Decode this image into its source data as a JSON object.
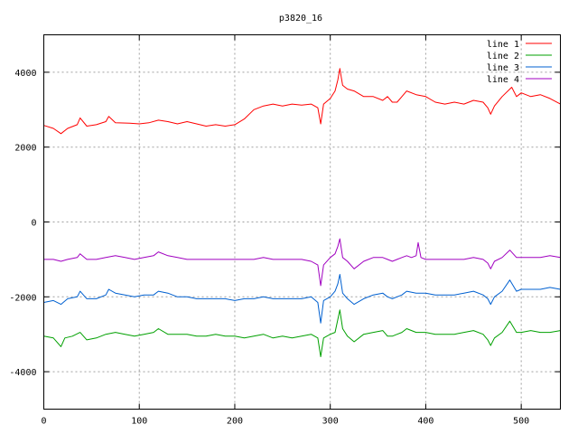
{
  "chart_data": {
    "type": "line",
    "title": "p3820_16",
    "xlabel": "",
    "ylabel": "",
    "xlim": [
      0,
      541
    ],
    "ylim": [
      -5000,
      5000
    ],
    "x_ticks": [
      0,
      100,
      200,
      300,
      400,
      500
    ],
    "y_ticks": [
      -4000,
      -2000,
      0,
      2000,
      4000
    ],
    "grid": true,
    "legend_position": "top-right",
    "series": [
      {
        "name": "line 1",
        "color": "#ff0000",
        "points": [
          [
            0,
            2580
          ],
          [
            10,
            2500
          ],
          [
            18,
            2360
          ],
          [
            25,
            2500
          ],
          [
            35,
            2600
          ],
          [
            38,
            2780
          ],
          [
            45,
            2560
          ],
          [
            55,
            2600
          ],
          [
            65,
            2680
          ],
          [
            68,
            2820
          ],
          [
            75,
            2650
          ],
          [
            90,
            2640
          ],
          [
            100,
            2620
          ],
          [
            110,
            2650
          ],
          [
            120,
            2720
          ],
          [
            130,
            2680
          ],
          [
            140,
            2620
          ],
          [
            150,
            2680
          ],
          [
            160,
            2620
          ],
          [
            170,
            2560
          ],
          [
            180,
            2600
          ],
          [
            190,
            2560
          ],
          [
            200,
            2600
          ],
          [
            210,
            2750
          ],
          [
            220,
            3000
          ],
          [
            230,
            3100
          ],
          [
            240,
            3150
          ],
          [
            250,
            3100
          ],
          [
            260,
            3150
          ],
          [
            270,
            3120
          ],
          [
            280,
            3150
          ],
          [
            287,
            3050
          ],
          [
            290,
            2620
          ],
          [
            293,
            3150
          ],
          [
            300,
            3300
          ],
          [
            305,
            3500
          ],
          [
            308,
            3800
          ],
          [
            310,
            4100
          ],
          [
            313,
            3650
          ],
          [
            318,
            3550
          ],
          [
            325,
            3500
          ],
          [
            335,
            3350
          ],
          [
            345,
            3350
          ],
          [
            355,
            3250
          ],
          [
            360,
            3350
          ],
          [
            365,
            3200
          ],
          [
            370,
            3200
          ],
          [
            375,
            3350
          ],
          [
            380,
            3500
          ],
          [
            390,
            3400
          ],
          [
            400,
            3350
          ],
          [
            410,
            3200
          ],
          [
            420,
            3150
          ],
          [
            430,
            3200
          ],
          [
            440,
            3150
          ],
          [
            450,
            3250
          ],
          [
            460,
            3200
          ],
          [
            465,
            3050
          ],
          [
            468,
            2880
          ],
          [
            472,
            3100
          ],
          [
            480,
            3350
          ],
          [
            490,
            3600
          ],
          [
            495,
            3350
          ],
          [
            500,
            3450
          ],
          [
            510,
            3350
          ],
          [
            520,
            3400
          ],
          [
            530,
            3300
          ],
          [
            541,
            3150
          ]
        ]
      },
      {
        "name": "line 2",
        "color": "#00a000",
        "points": [
          [
            0,
            -3050
          ],
          [
            10,
            -3100
          ],
          [
            18,
            -3330
          ],
          [
            22,
            -3100
          ],
          [
            30,
            -3050
          ],
          [
            38,
            -2950
          ],
          [
            45,
            -3150
          ],
          [
            55,
            -3100
          ],
          [
            65,
            -3000
          ],
          [
            75,
            -2950
          ],
          [
            85,
            -3000
          ],
          [
            95,
            -3050
          ],
          [
            105,
            -3000
          ],
          [
            115,
            -2950
          ],
          [
            120,
            -2850
          ],
          [
            130,
            -3000
          ],
          [
            140,
            -3000
          ],
          [
            150,
            -3000
          ],
          [
            160,
            -3050
          ],
          [
            170,
            -3050
          ],
          [
            180,
            -3000
          ],
          [
            190,
            -3050
          ],
          [
            200,
            -3050
          ],
          [
            210,
            -3100
          ],
          [
            220,
            -3050
          ],
          [
            230,
            -3000
          ],
          [
            240,
            -3100
          ],
          [
            250,
            -3050
          ],
          [
            260,
            -3100
          ],
          [
            270,
            -3050
          ],
          [
            280,
            -3000
          ],
          [
            287,
            -3100
          ],
          [
            290,
            -3600
          ],
          [
            293,
            -3100
          ],
          [
            300,
            -3000
          ],
          [
            305,
            -2950
          ],
          [
            308,
            -2600
          ],
          [
            310,
            -2350
          ],
          [
            313,
            -2850
          ],
          [
            318,
            -3050
          ],
          [
            325,
            -3200
          ],
          [
            335,
            -3000
          ],
          [
            345,
            -2950
          ],
          [
            355,
            -2900
          ],
          [
            360,
            -3050
          ],
          [
            365,
            -3050
          ],
          [
            370,
            -3000
          ],
          [
            375,
            -2950
          ],
          [
            380,
            -2850
          ],
          [
            390,
            -2950
          ],
          [
            400,
            -2950
          ],
          [
            410,
            -3000
          ],
          [
            420,
            -3000
          ],
          [
            430,
            -3000
          ],
          [
            440,
            -2950
          ],
          [
            450,
            -2900
          ],
          [
            460,
            -3000
          ],
          [
            465,
            -3150
          ],
          [
            468,
            -3300
          ],
          [
            472,
            -3100
          ],
          [
            480,
            -2950
          ],
          [
            488,
            -2650
          ],
          [
            495,
            -2950
          ],
          [
            500,
            -2950
          ],
          [
            510,
            -2900
          ],
          [
            520,
            -2950
          ],
          [
            530,
            -2950
          ],
          [
            541,
            -2900
          ]
        ]
      },
      {
        "name": "line 3",
        "color": "#0060d0",
        "points": [
          [
            0,
            -2150
          ],
          [
            10,
            -2100
          ],
          [
            18,
            -2200
          ],
          [
            25,
            -2050
          ],
          [
            35,
            -2000
          ],
          [
            38,
            -1850
          ],
          [
            45,
            -2050
          ],
          [
            55,
            -2050
          ],
          [
            65,
            -1950
          ],
          [
            68,
            -1800
          ],
          [
            75,
            -1900
          ],
          [
            85,
            -1950
          ],
          [
            95,
            -2000
          ],
          [
            105,
            -1950
          ],
          [
            115,
            -1950
          ],
          [
            120,
            -1850
          ],
          [
            130,
            -1900
          ],
          [
            140,
            -2000
          ],
          [
            150,
            -2000
          ],
          [
            160,
            -2050
          ],
          [
            170,
            -2050
          ],
          [
            180,
            -2050
          ],
          [
            190,
            -2050
          ],
          [
            200,
            -2100
          ],
          [
            210,
            -2050
          ],
          [
            220,
            -2050
          ],
          [
            230,
            -2000
          ],
          [
            240,
            -2050
          ],
          [
            250,
            -2050
          ],
          [
            260,
            -2050
          ],
          [
            270,
            -2050
          ],
          [
            280,
            -2000
          ],
          [
            287,
            -2150
          ],
          [
            290,
            -2700
          ],
          [
            293,
            -2100
          ],
          [
            300,
            -2000
          ],
          [
            305,
            -1850
          ],
          [
            308,
            -1650
          ],
          [
            310,
            -1400
          ],
          [
            313,
            -1900
          ],
          [
            318,
            -2050
          ],
          [
            325,
            -2200
          ],
          [
            335,
            -2050
          ],
          [
            345,
            -1950
          ],
          [
            355,
            -1900
          ],
          [
            360,
            -2000
          ],
          [
            365,
            -2050
          ],
          [
            370,
            -2000
          ],
          [
            375,
            -1950
          ],
          [
            380,
            -1850
          ],
          [
            390,
            -1900
          ],
          [
            400,
            -1900
          ],
          [
            410,
            -1950
          ],
          [
            420,
            -1950
          ],
          [
            430,
            -1950
          ],
          [
            440,
            -1900
          ],
          [
            450,
            -1850
          ],
          [
            460,
            -1950
          ],
          [
            465,
            -2050
          ],
          [
            468,
            -2200
          ],
          [
            472,
            -2000
          ],
          [
            480,
            -1850
          ],
          [
            488,
            -1550
          ],
          [
            495,
            -1850
          ],
          [
            500,
            -1800
          ],
          [
            510,
            -1800
          ],
          [
            520,
            -1800
          ],
          [
            530,
            -1750
          ],
          [
            541,
            -1800
          ]
        ]
      },
      {
        "name": "line 4",
        "color": "#a000c0",
        "points": [
          [
            0,
            -1000
          ],
          [
            10,
            -1000
          ],
          [
            18,
            -1050
          ],
          [
            25,
            -1000
          ],
          [
            35,
            -950
          ],
          [
            38,
            -850
          ],
          [
            45,
            -1000
          ],
          [
            55,
            -1000
          ],
          [
            65,
            -950
          ],
          [
            75,
            -900
          ],
          [
            85,
            -950
          ],
          [
            95,
            -1000
          ],
          [
            105,
            -950
          ],
          [
            115,
            -900
          ],
          [
            120,
            -800
          ],
          [
            130,
            -900
          ],
          [
            140,
            -950
          ],
          [
            150,
            -1000
          ],
          [
            160,
            -1000
          ],
          [
            170,
            -1000
          ],
          [
            180,
            -1000
          ],
          [
            190,
            -1000
          ],
          [
            200,
            -1000
          ],
          [
            210,
            -1000
          ],
          [
            220,
            -1000
          ],
          [
            230,
            -950
          ],
          [
            240,
            -1000
          ],
          [
            250,
            -1000
          ],
          [
            260,
            -1000
          ],
          [
            270,
            -1000
          ],
          [
            280,
            -1050
          ],
          [
            287,
            -1150
          ],
          [
            290,
            -1700
          ],
          [
            293,
            -1150
          ],
          [
            300,
            -950
          ],
          [
            305,
            -850
          ],
          [
            308,
            -650
          ],
          [
            310,
            -450
          ],
          [
            313,
            -950
          ],
          [
            318,
            -1050
          ],
          [
            325,
            -1250
          ],
          [
            335,
            -1050
          ],
          [
            345,
            -950
          ],
          [
            355,
            -950
          ],
          [
            360,
            -1000
          ],
          [
            365,
            -1050
          ],
          [
            370,
            -1000
          ],
          [
            375,
            -950
          ],
          [
            380,
            -900
          ],
          [
            385,
            -950
          ],
          [
            390,
            -900
          ],
          [
            392,
            -550
          ],
          [
            395,
            -950
          ],
          [
            400,
            -1000
          ],
          [
            410,
            -1000
          ],
          [
            420,
            -1000
          ],
          [
            430,
            -1000
          ],
          [
            440,
            -1000
          ],
          [
            450,
            -950
          ],
          [
            460,
            -1000
          ],
          [
            465,
            -1100
          ],
          [
            468,
            -1250
          ],
          [
            472,
            -1050
          ],
          [
            480,
            -950
          ],
          [
            488,
            -750
          ],
          [
            495,
            -950
          ],
          [
            500,
            -950
          ],
          [
            510,
            -950
          ],
          [
            520,
            -950
          ],
          [
            530,
            -900
          ],
          [
            541,
            -950
          ]
        ]
      }
    ]
  }
}
